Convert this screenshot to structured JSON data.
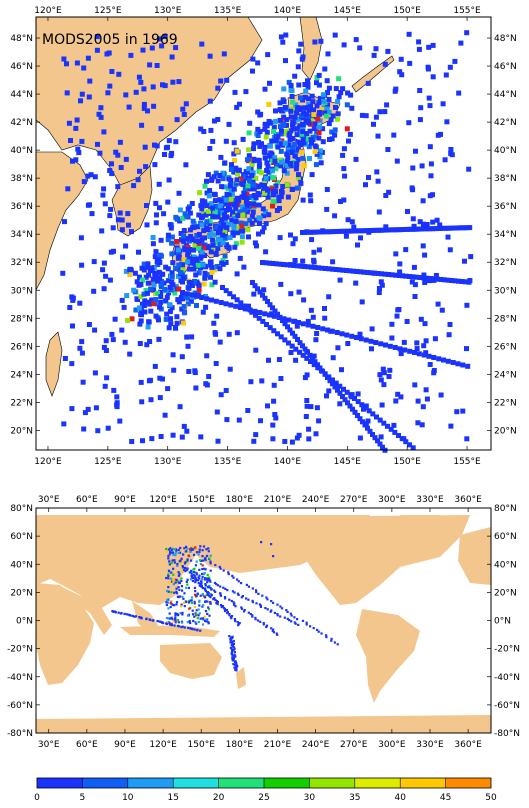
{
  "top_map": {
    "title": "MODS2005 in 1969",
    "lon_labels": [
      "120°E",
      "125°E",
      "130°E",
      "135°E",
      "140°E",
      "145°E",
      "150°E",
      "155°E"
    ],
    "lat_labels": [
      "20°N",
      "22°N",
      "24°N",
      "26°N",
      "28°N",
      "30°N",
      "32°N",
      "34°N",
      "36°N",
      "38°N",
      "40°N",
      "42°N",
      "44°N",
      "46°N",
      "48°N"
    ],
    "lon_range": [
      119,
      157
    ],
    "lat_range": [
      18.6,
      49.5
    ]
  },
  "bottom_map": {
    "lon_labels": [
      "30°E",
      "60°E",
      "90°E",
      "120°E",
      "150°E",
      "180°E",
      "210°E",
      "240°E",
      "270°E",
      "300°E",
      "330°E",
      "360°E"
    ],
    "lat_labels": [
      "-80°N",
      "-60°N",
      "-40°N",
      "-20°N",
      "0°N",
      "20°N",
      "40°N",
      "60°N",
      "80°N"
    ],
    "lon_range": [
      20,
      378
    ],
    "lat_range": [
      -80,
      80
    ]
  },
  "colorbar": {
    "ticks": [
      "0",
      "5",
      "10",
      "15",
      "20",
      "25",
      "30",
      "35",
      "40",
      "45",
      "50"
    ],
    "colors": [
      "#1a33ff",
      "#0f5ff7",
      "#1d9bf5",
      "#1fe0e0",
      "#20e07a",
      "#12d000",
      "#92e600",
      "#dcec00",
      "#ffc800",
      "#ff8a00",
      "#e31a1a"
    ]
  },
  "colors": {
    "land": "#f2c68c",
    "ocean": "#ffffff",
    "obs_low": "#1a33ff",
    "obs_high": "#e31a1a"
  }
}
